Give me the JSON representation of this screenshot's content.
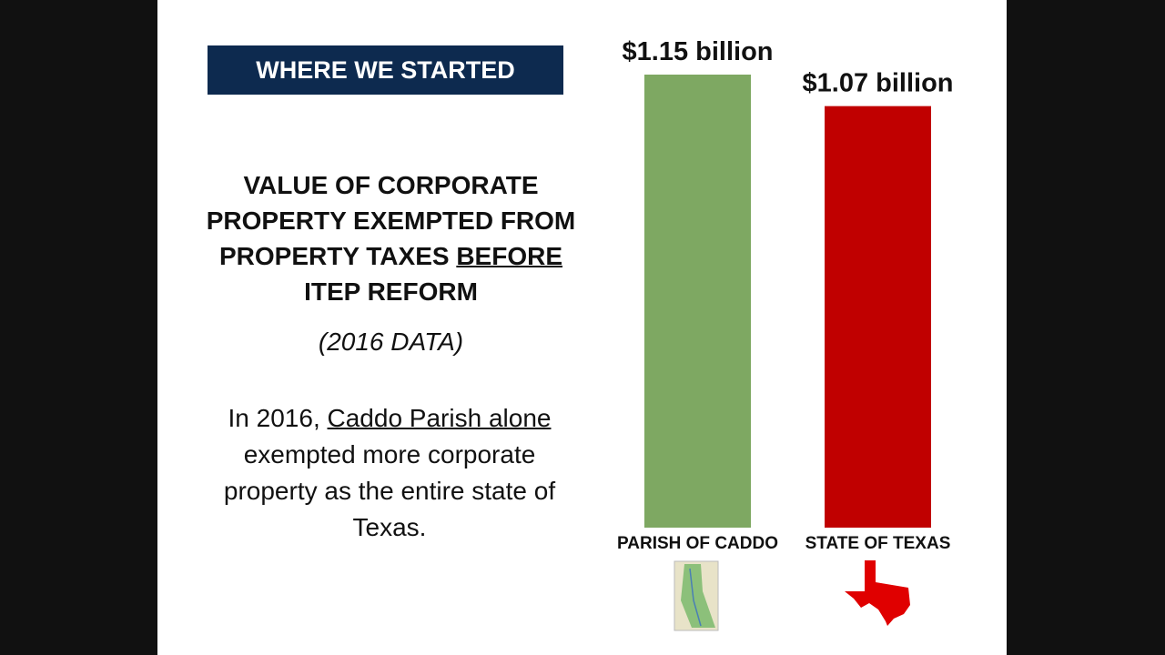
{
  "banner": "WHERE WE STARTED",
  "heading": {
    "text": "VALUE OF CORPORATE PROPERTY EXEMPTED FROM PROPERTY TAXES",
    "underlined": "BEFORE",
    "rest": "ITEP REFORM"
  },
  "note": "(2016 DATA)",
  "paragraph": {
    "start": "In 2016,",
    "underlined": "Caddo Parish alone",
    "end": "exempted more corporate property as the entire state of Texas."
  },
  "chart_data": {
    "type": "bar",
    "categories": [
      "PARISH OF CADDO",
      "STATE OF TEXAS"
    ],
    "values": [
      1.15,
      1.07
    ],
    "value_labels": [
      "$1.15 billion",
      "$1.07 billion"
    ],
    "colors": [
      "#7ea862",
      "#c00000"
    ]
  }
}
